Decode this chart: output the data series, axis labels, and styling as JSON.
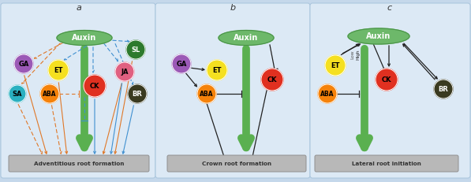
{
  "auxin_color": "#6db86a",
  "ET_color": "#f5e020",
  "ABA_color": "#f5820a",
  "CK_color": "#e03020",
  "GA_color": "#9b59b6",
  "SA_color": "#2ab0c0",
  "SL_color": "#2d7a2d",
  "JA_color": "#e06080",
  "BR_color": "#3a3a20",
  "orange": "#e07828",
  "blue": "#4090d0",
  "black": "#222222",
  "panel_bg": "#dce9f5",
  "outer_bg": "#c5d8eb",
  "label_a": "a",
  "label_b": "b",
  "label_c": "c",
  "box_a_text": "Adventitious root formation",
  "box_b_text": "Crown root formation",
  "box_c_text": "Lateral root initiation"
}
